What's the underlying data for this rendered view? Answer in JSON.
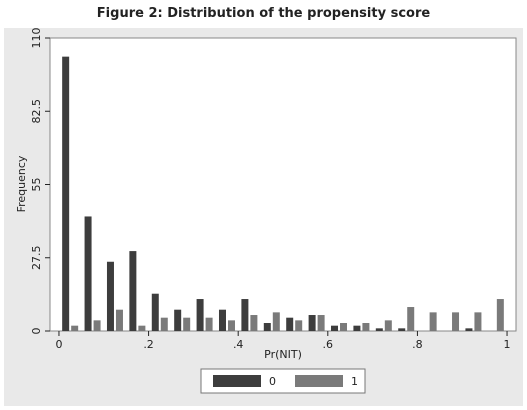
{
  "figure": {
    "title": "Figure 2: Distribution of the propensity score"
  },
  "chart_data": {
    "type": "bar",
    "xlabel": "Pr(NIT)",
    "ylabel": "Frequency",
    "xlim": [
      -0.02,
      1.02
    ],
    "ylim": [
      0,
      110
    ],
    "x_ticks": [
      0,
      0.2,
      0.4,
      0.6,
      0.8,
      1
    ],
    "x_tick_labels": [
      "0",
      ".2",
      ".4",
      ".6",
      ".8",
      "1"
    ],
    "y_ticks": [
      0,
      27.5,
      55,
      82.5,
      110
    ],
    "y_tick_labels": [
      "0",
      "27.5",
      "55",
      "82.5",
      "110"
    ],
    "grid": false,
    "legend_position": "bottom",
    "categories": [
      0.025,
      0.075,
      0.125,
      0.175,
      0.225,
      0.275,
      0.325,
      0.375,
      0.425,
      0.475,
      0.525,
      0.575,
      0.625,
      0.675,
      0.725,
      0.775,
      0.825,
      0.875,
      0.925,
      0.975
    ],
    "series": [
      {
        "name": "0",
        "color": "#3d3d3d",
        "values": [
          103,
          43,
          26,
          30,
          14,
          8,
          12,
          8,
          12,
          3,
          5,
          6,
          2,
          2,
          1,
          1,
          0,
          0,
          1,
          0
        ]
      },
      {
        "name": "1",
        "color": "#7a7a7a",
        "values": [
          2,
          4,
          8,
          2,
          5,
          5,
          5,
          4,
          6,
          7,
          4,
          6,
          3,
          3,
          4,
          9,
          7,
          7,
          7,
          12
        ]
      }
    ]
  }
}
